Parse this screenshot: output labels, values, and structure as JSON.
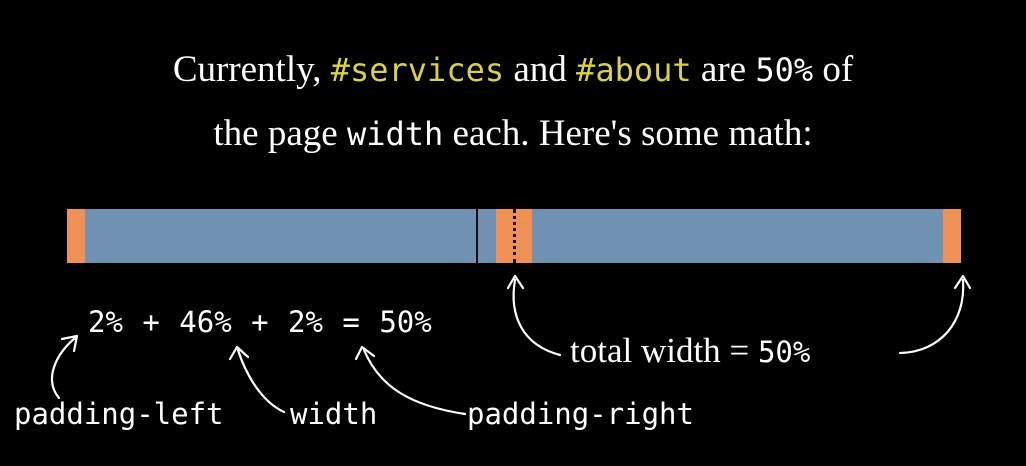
{
  "intro": {
    "line1_prefix": "Currently, ",
    "selector_services": "#services",
    "line1_and": " and ",
    "selector_about": "#about",
    "line1_are": " are ",
    "percent_50": "50%",
    "line1_of": " of",
    "line2_prefix": "the page ",
    "width_keyword": "width",
    "line2_suffix": " each. Here's some math:"
  },
  "bar": {
    "segments": [
      {
        "kind": "padding",
        "percent": 2
      },
      {
        "kind": "content",
        "percent": 46
      },
      {
        "kind": "padding",
        "percent": 2
      },
      {
        "kind": "padding",
        "percent": 2
      },
      {
        "kind": "content",
        "percent": 46
      },
      {
        "kind": "padding",
        "percent": 2
      }
    ],
    "colors": {
      "padding": "#ef9155",
      "content": "#7191b3",
      "highlight": "#d9d14e"
    }
  },
  "equation": {
    "text": "2% + 46% + 2% = 50%"
  },
  "labels": {
    "padding_left": "padding-left",
    "width": "width",
    "padding_right": "padding-right"
  },
  "total": {
    "label": "total width",
    "equals": " = ",
    "value": "50%"
  }
}
